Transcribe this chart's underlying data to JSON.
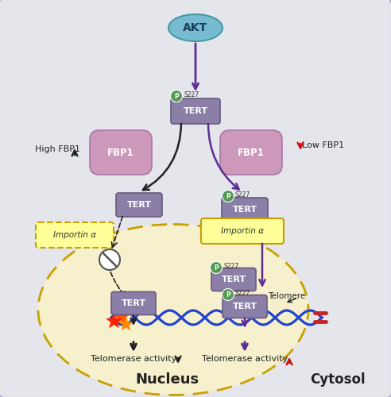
{
  "bg_color": "#e5e5ec",
  "cell_bg": "#f7f0cc",
  "tert_color": "#8b7fa8",
  "tert_edge": "#6a5a80",
  "fbp1_color": "#cc99bb",
  "fbp1_edge": "#aa77aa",
  "akt_color": "#77bbd0",
  "akt_edge": "#4499aa",
  "phospho_color": "#559955",
  "purple": "#5c2d91",
  "black": "#222222",
  "red": "#cc1111",
  "gold": "#c8a000",
  "yellow_fill": "#ffff99",
  "nucleus_label": "Nucleus",
  "cytosol_label": "Cytosol",
  "high_fbp1": "High FBP1",
  "low_fbp1": "Low FBP1",
  "telomerase": "Telomerase activity",
  "telomere": "Telomere",
  "importin": "Importin α",
  "s227": "S227"
}
